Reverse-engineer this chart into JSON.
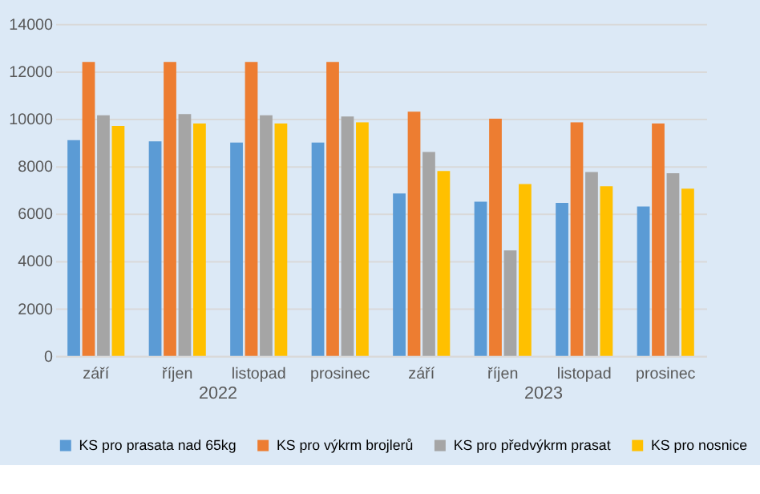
{
  "chart_data": {
    "type": "bar",
    "categories": [
      "září",
      "říjen",
      "listopad",
      "prosinec",
      "září",
      "říjen",
      "listopad",
      "prosinec"
    ],
    "series": [
      {
        "name": "KS pro prasata nad 65kg",
        "color": "#5b9bd5",
        "values": [
          9100,
          9050,
          9000,
          9000,
          6850,
          6500,
          6450,
          6300
        ]
      },
      {
        "name": "KS pro výkrm brojlerů",
        "color": "#ed7d31",
        "values": [
          12400,
          12400,
          12400,
          12400,
          10300,
          10000,
          9850,
          9800
        ]
      },
      {
        "name": "KS pro předvýkrm prasat",
        "color": "#a5a5a5",
        "values": [
          10150,
          10200,
          10150,
          10100,
          8600,
          4450,
          7750,
          7700
        ]
      },
      {
        "name": "KS pro nosnice",
        "color": "#ffc000",
        "values": [
          9700,
          9800,
          9800,
          9850,
          7800,
          7250,
          7150,
          7050
        ]
      }
    ],
    "annotations": [
      "2022",
      "2023"
    ],
    "ylim": [
      0,
      14000
    ],
    "yticks": [
      0,
      2000,
      4000,
      6000,
      8000,
      10000,
      12000,
      14000
    ],
    "grid": "y",
    "legend": "bottom"
  }
}
